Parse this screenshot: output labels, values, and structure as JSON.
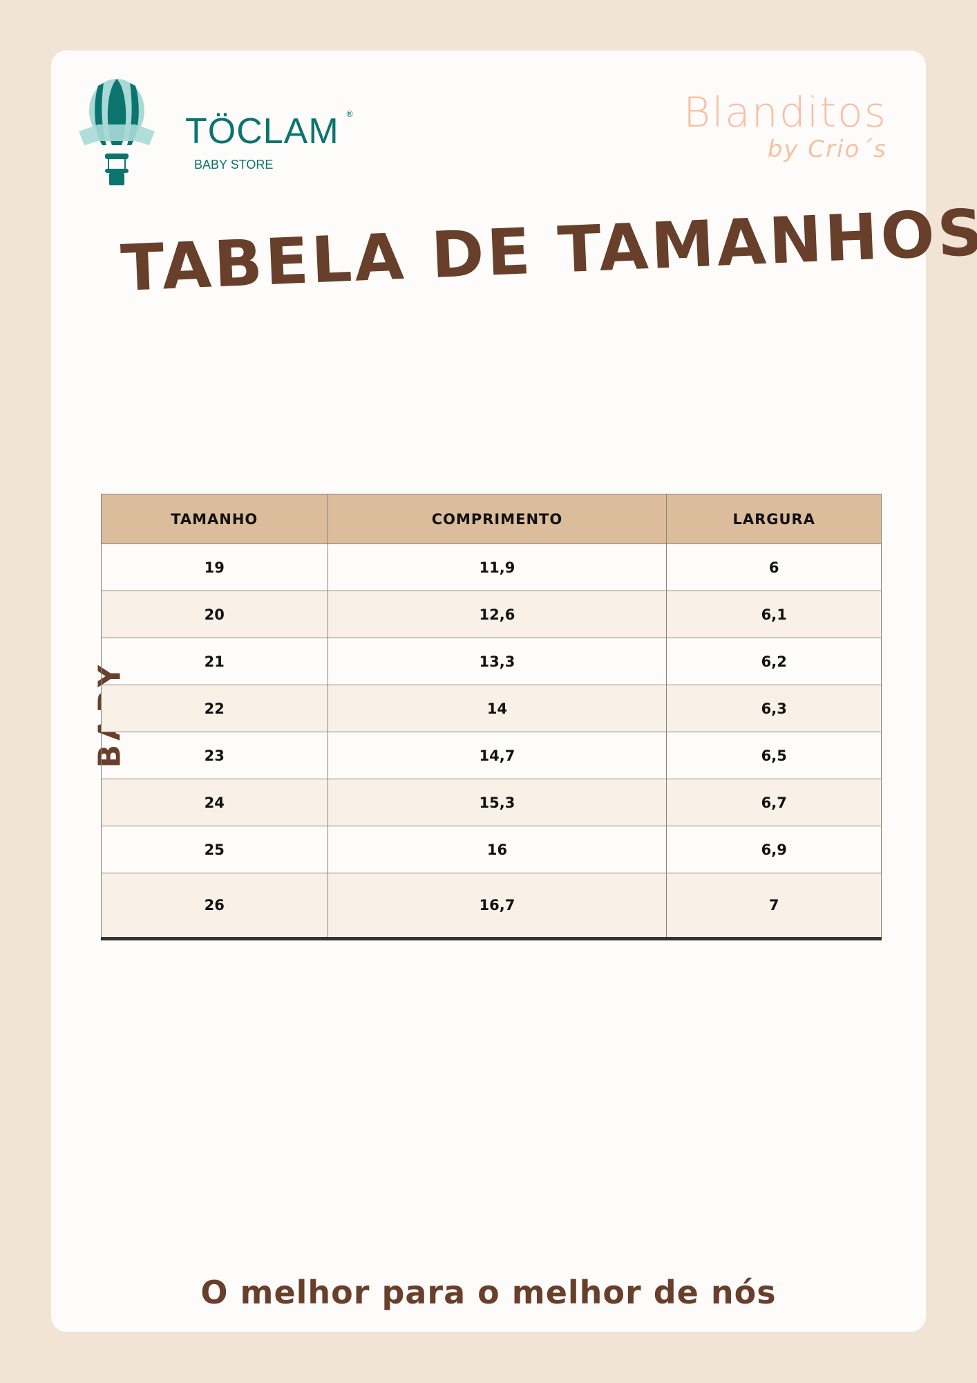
{
  "logo_left": {
    "brand": "TÖCLAM",
    "registered": "®",
    "subtitle": "BABY STORE",
    "colors": {
      "teal": "#0b746f",
      "light": "#a8d9d6"
    }
  },
  "logo_right": {
    "line1": "Blanditos",
    "line2": "by Crio´s",
    "color": "#f9bfa1"
  },
  "title": "TABELA DE TAMANHOS",
  "side_label": "BABY",
  "table": {
    "headers": [
      "TAMANHO",
      "COMPRIMENTO",
      "LARGURA"
    ],
    "rows": [
      [
        "19",
        "11,9",
        "6"
      ],
      [
        "20",
        "12,6",
        "6,1"
      ],
      [
        "21",
        "13,3",
        "6,2"
      ],
      [
        "22",
        "14",
        "6,3"
      ],
      [
        "23",
        "14,7",
        "6,5"
      ],
      [
        "24",
        "15,3",
        "6,7"
      ],
      [
        "25",
        "16",
        "6,9"
      ],
      [
        "26",
        "16,7",
        "7"
      ]
    ]
  },
  "footer": "O melhor para o melhor de nós"
}
